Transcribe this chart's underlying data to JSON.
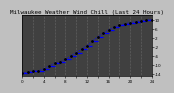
{
  "title": "Milwaukee Weather Wind Chill (Last 24 Hours)",
  "wind_chill": [
    -13.5,
    -13.2,
    -12.8,
    -12.5,
    -11.8,
    -10.5,
    -9.2,
    -8.8,
    -7.5,
    -6.0,
    -4.5,
    -3.0,
    -1.5,
    0.5,
    2.5,
    4.0,
    5.5,
    6.8,
    7.5,
    8.2,
    8.8,
    9.2,
    9.5,
    9.8,
    10.0
  ],
  "ylim": [
    -15,
    12
  ],
  "xlim": [
    0,
    24
  ],
  "bg_color": "#c0c0c0",
  "plot_bg_color": "#404040",
  "line_color": "#0000ff",
  "dot_color": "#000000",
  "grid_color": "#888888",
  "title_color": "#000000",
  "title_fontsize": 4.2,
  "tick_fontsize": 3.0,
  "ytick_values": [
    -14,
    -10,
    -6,
    -2,
    2,
    6,
    10
  ],
  "xtick_positions": [
    0,
    2,
    4,
    6,
    8,
    10,
    12,
    14,
    16,
    18,
    20,
    22,
    24
  ],
  "vgrid_positions": [
    2,
    4,
    6,
    8,
    10,
    12,
    14,
    16,
    18,
    20,
    22,
    24
  ]
}
